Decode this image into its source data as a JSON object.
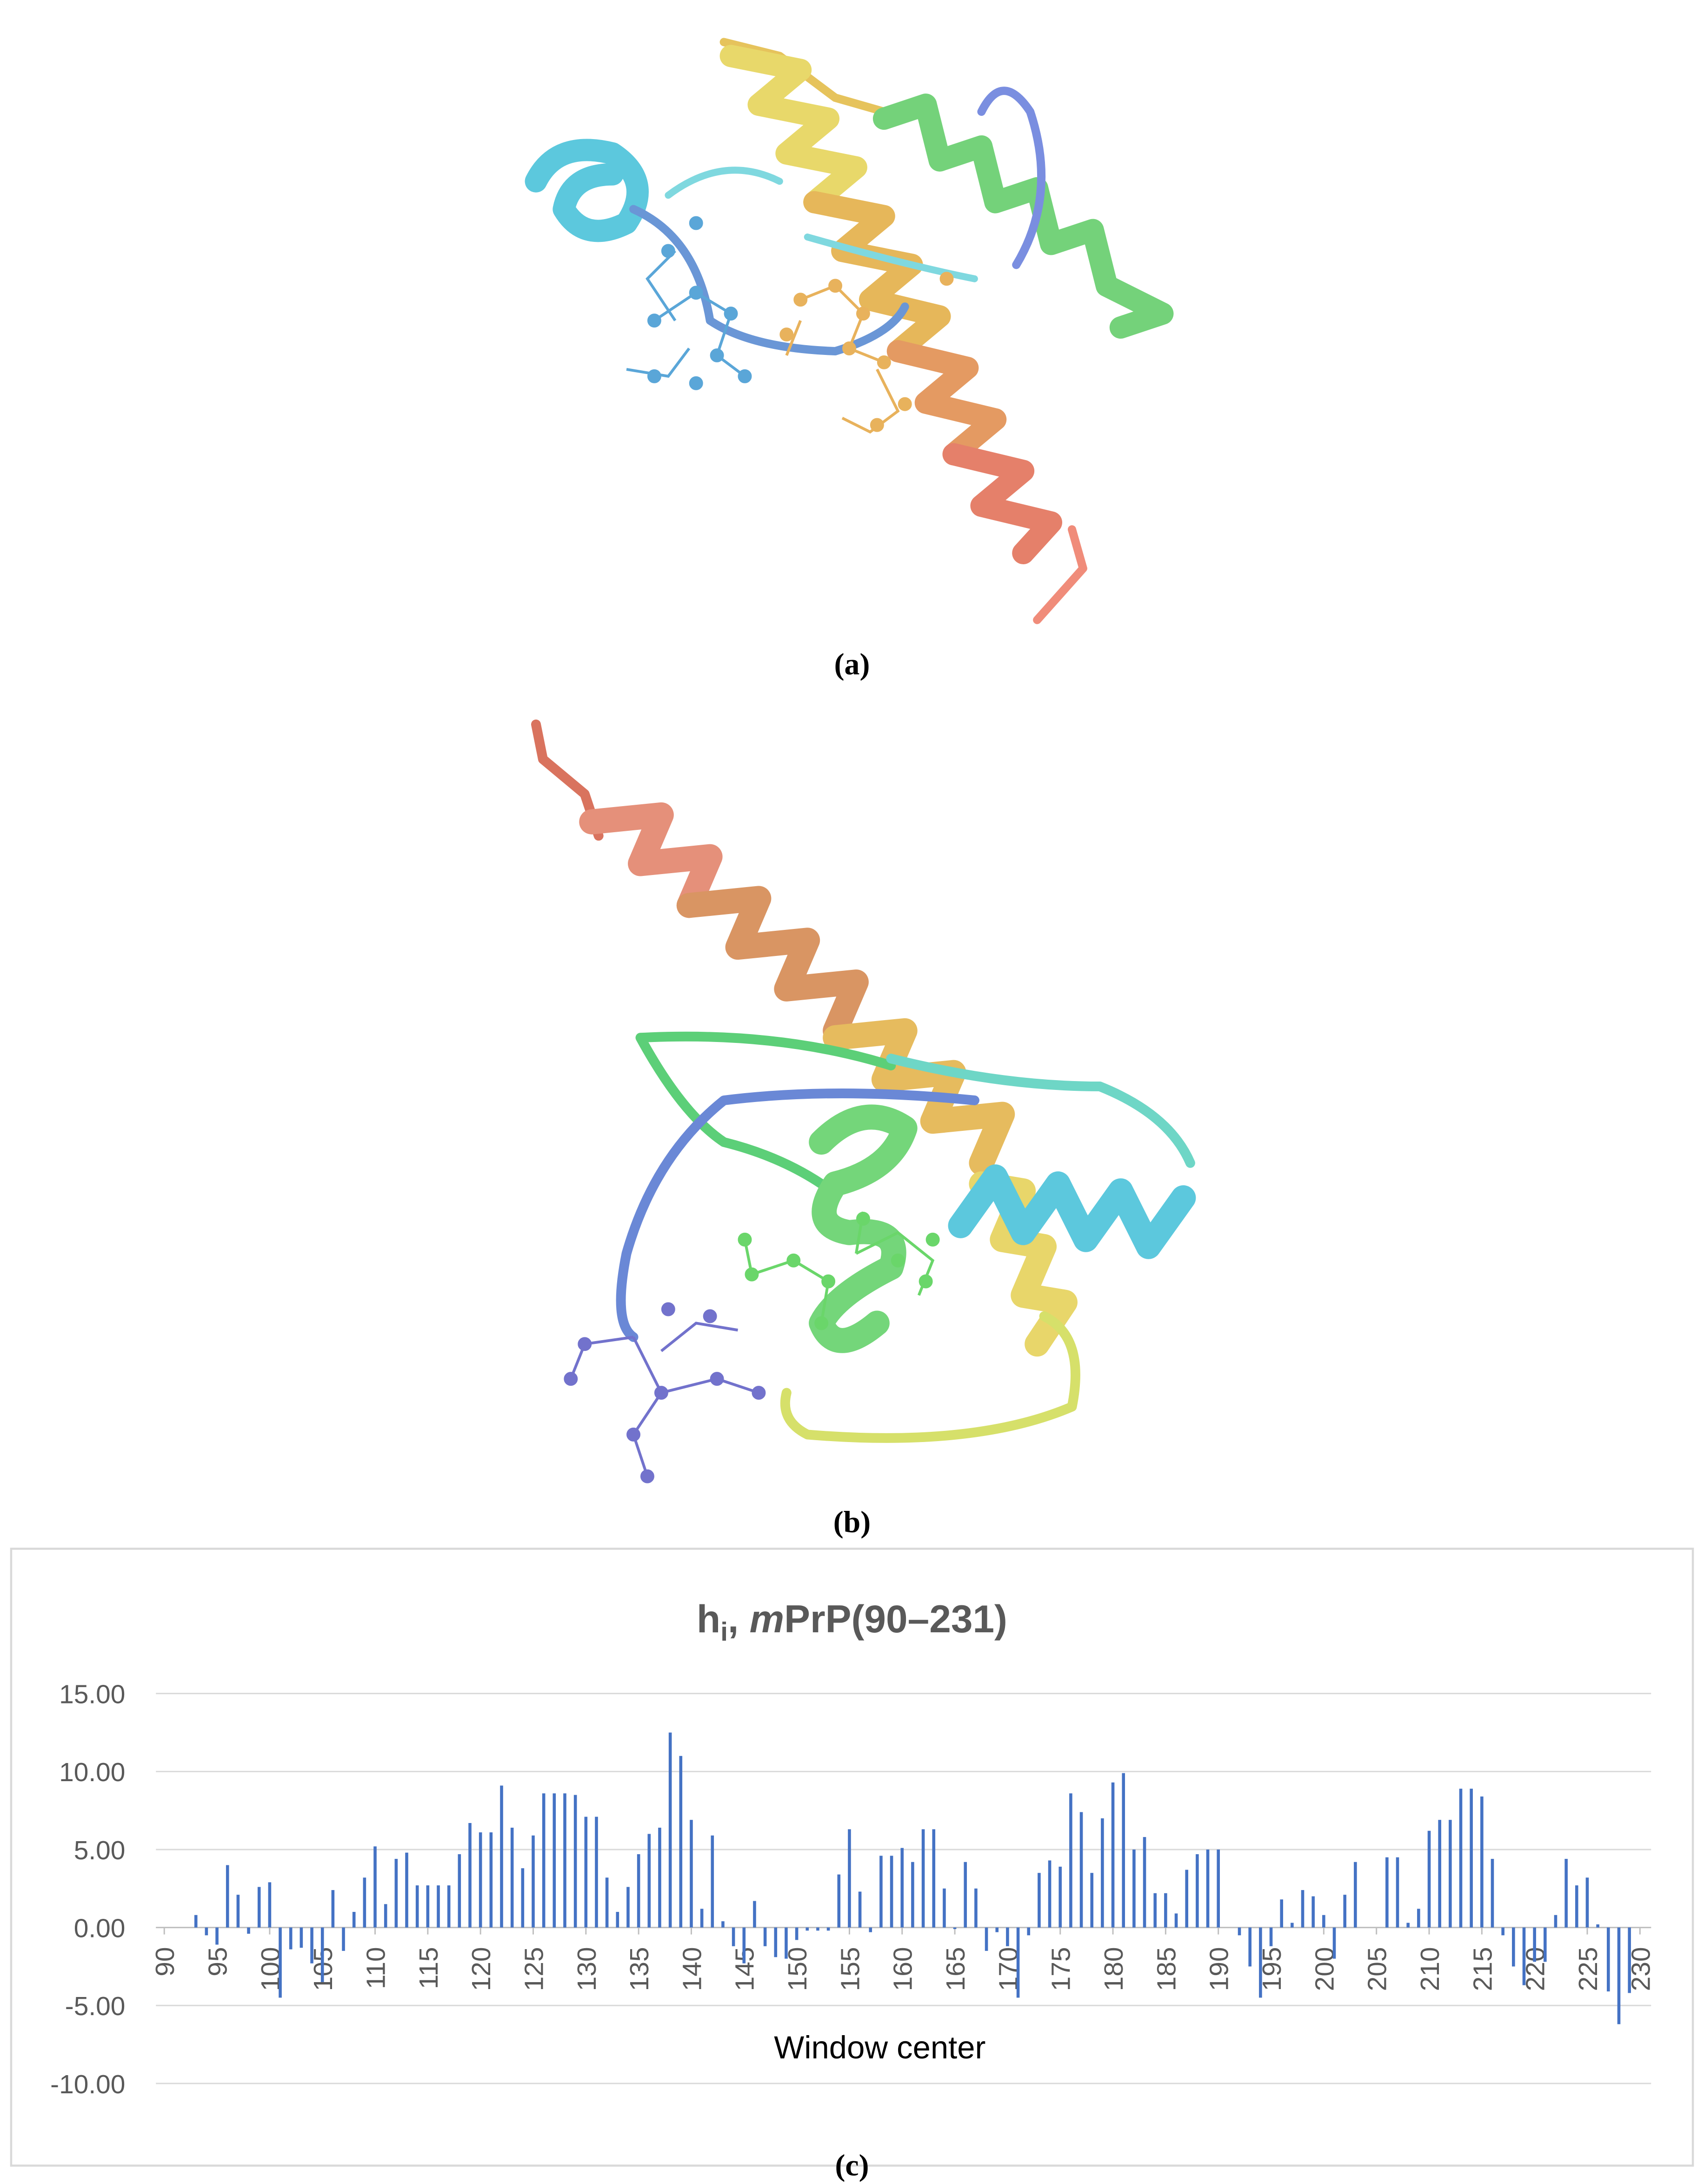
{
  "captions": [
    "(a)",
    "(b)",
    "(c)"
  ],
  "chart_data": {
    "type": "bar",
    "title": [
      "h",
      "i",
      ", ",
      "m",
      "PrP(90–231)"
    ],
    "xlabel": "Window center",
    "color": "#4472c4",
    "x": [
      93,
      94,
      95,
      96,
      97,
      98,
      99,
      100,
      101,
      102,
      103,
      104,
      105,
      106,
      107,
      108,
      109,
      110,
      111,
      112,
      113,
      114,
      115,
      116,
      117,
      118,
      119,
      120,
      121,
      122,
      123,
      124,
      125,
      126,
      127,
      128,
      129,
      130,
      131,
      132,
      133,
      134,
      135,
      136,
      137,
      138,
      139,
      140,
      141,
      142,
      143,
      144,
      145,
      146,
      147,
      148,
      149,
      150,
      151,
      152,
      153,
      154,
      155,
      156,
      157,
      158,
      159,
      160,
      161,
      162,
      163,
      164,
      165,
      166,
      167,
      168,
      169,
      170,
      171,
      172,
      173,
      174,
      175,
      176,
      177,
      178,
      179,
      180,
      181,
      182,
      183,
      184,
      185,
      186,
      187,
      188,
      189,
      190,
      191,
      192,
      193,
      194,
      195,
      196,
      197,
      198,
      199,
      200,
      201,
      202,
      203,
      204,
      205,
      206,
      207,
      208,
      209,
      210,
      211,
      212,
      213,
      214,
      215,
      216,
      217,
      218,
      219,
      220,
      221,
      222,
      223,
      224,
      225,
      226,
      227,
      228,
      229
    ],
    "values": [
      0.8,
      -0.5,
      -1.1,
      4.0,
      2.1,
      -0.4,
      2.6,
      2.9,
      -4.5,
      -1.4,
      -1.3,
      -2.3,
      -3.5,
      2.4,
      -1.5,
      1.0,
      3.2,
      5.2,
      1.5,
      4.4,
      4.8,
      2.7,
      2.7,
      2.7,
      2.7,
      4.7,
      6.7,
      6.1,
      6.1,
      9.1,
      6.4,
      3.8,
      5.9,
      8.6,
      8.6,
      8.6,
      8.5,
      7.1,
      7.1,
      3.2,
      1.0,
      2.6,
      4.7,
      6.0,
      6.4,
      12.5,
      11.0,
      6.9,
      1.2,
      5.9,
      0.4,
      -1.2,
      -2.3,
      1.7,
      -1.2,
      -1.9,
      -2.0,
      -0.8,
      -0.2,
      -0.2,
      -0.2,
      3.4,
      6.3,
      2.3,
      -0.3,
      4.6,
      4.6,
      5.1,
      4.2,
      6.3,
      6.3,
      2.5,
      -0.1,
      4.2,
      2.5,
      -1.5,
      -0.3,
      -1.2,
      -4.5,
      -0.5,
      3.5,
      4.3,
      3.9,
      8.6,
      7.4,
      3.5,
      7.0,
      9.3,
      9.9,
      5.0,
      5.8,
      2.2,
      2.2,
      0.9,
      3.7,
      4.7,
      5.0,
      5.0,
      0,
      -0.5,
      -2.5,
      -4.5,
      -1.2,
      1.8,
      0.3,
      2.4,
      2.0,
      0.8,
      -2.0,
      2.1,
      4.2,
      0,
      0,
      4.5,
      4.5,
      0.3,
      1.2,
      6.2,
      6.9,
      6.9,
      8.9,
      8.9,
      8.4,
      4.4,
      -0.5,
      -2.5,
      -3.7,
      -2.2,
      -2.2,
      0.8,
      4.4,
      2.7,
      3.2,
      0.2,
      -4.1,
      -6.2,
      -4.2
    ],
    "xlim": [
      90,
      230
    ],
    "xticks": [
      90,
      95,
      100,
      105,
      110,
      115,
      120,
      125,
      130,
      135,
      140,
      145,
      150,
      155,
      160,
      165,
      170,
      175,
      180,
      185,
      190,
      195,
      200,
      205,
      210,
      215,
      220,
      225,
      230
    ],
    "ylim": [
      -10,
      15
    ],
    "yticks": [
      {
        "value": -10,
        "label": "-10.00"
      },
      {
        "value": -5,
        "label": "-5.00"
      },
      {
        "value": 0,
        "label": "0.00"
      },
      {
        "value": 5,
        "label": "5.00"
      },
      {
        "value": 10,
        "label": "10.00"
      },
      {
        "value": 15,
        "label": "15.00"
      }
    ],
    "grid": true
  }
}
